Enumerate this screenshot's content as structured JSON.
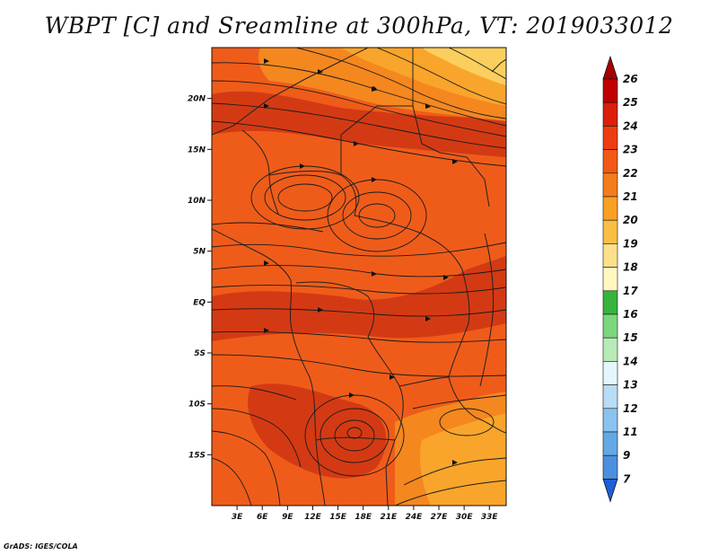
{
  "title": "WBPT [C] and Sreamline at 300hPa, VT: 2019033012",
  "credit": "GrADS: IGES/COLA",
  "map": {
    "lon_range": [
      0,
      35
    ],
    "lat_range": [
      -20,
      25
    ],
    "lon_ticks": [
      "3E",
      "6E",
      "9E",
      "12E",
      "15E",
      "18E",
      "21E",
      "24E",
      "27E",
      "30E",
      "33E"
    ],
    "lat_ticks": [
      "20N",
      "15N",
      "10N",
      "5N",
      "EQ",
      "5S",
      "10S",
      "15S"
    ],
    "fill_colors": {
      "dark": "#d33a14",
      "main": "#ef5c1a",
      "light": "#f5871f",
      "amber": "#f9a52b",
      "pale": "#fbcf5e"
    }
  },
  "colorbar": {
    "labels": [
      "26",
      "25",
      "24",
      "23",
      "22",
      "21",
      "20",
      "19",
      "18",
      "17",
      "16",
      "15",
      "14",
      "13",
      "12",
      "11",
      "9",
      "7"
    ],
    "top_color": "#a80000",
    "bottom_color": "#1f5fd6",
    "colors": [
      "#c00000",
      "#dc1e0a",
      "#ee3c12",
      "#f05a14",
      "#f57c1a",
      "#f9a024",
      "#fbbe44",
      "#fde08a",
      "#fff8c0",
      "#36b43c",
      "#7cd67c",
      "#b8eab8",
      "#e4f6fc",
      "#b8dcf6",
      "#8cc2ee",
      "#64a8e6",
      "#4a90de",
      "#3276d8"
    ]
  }
}
